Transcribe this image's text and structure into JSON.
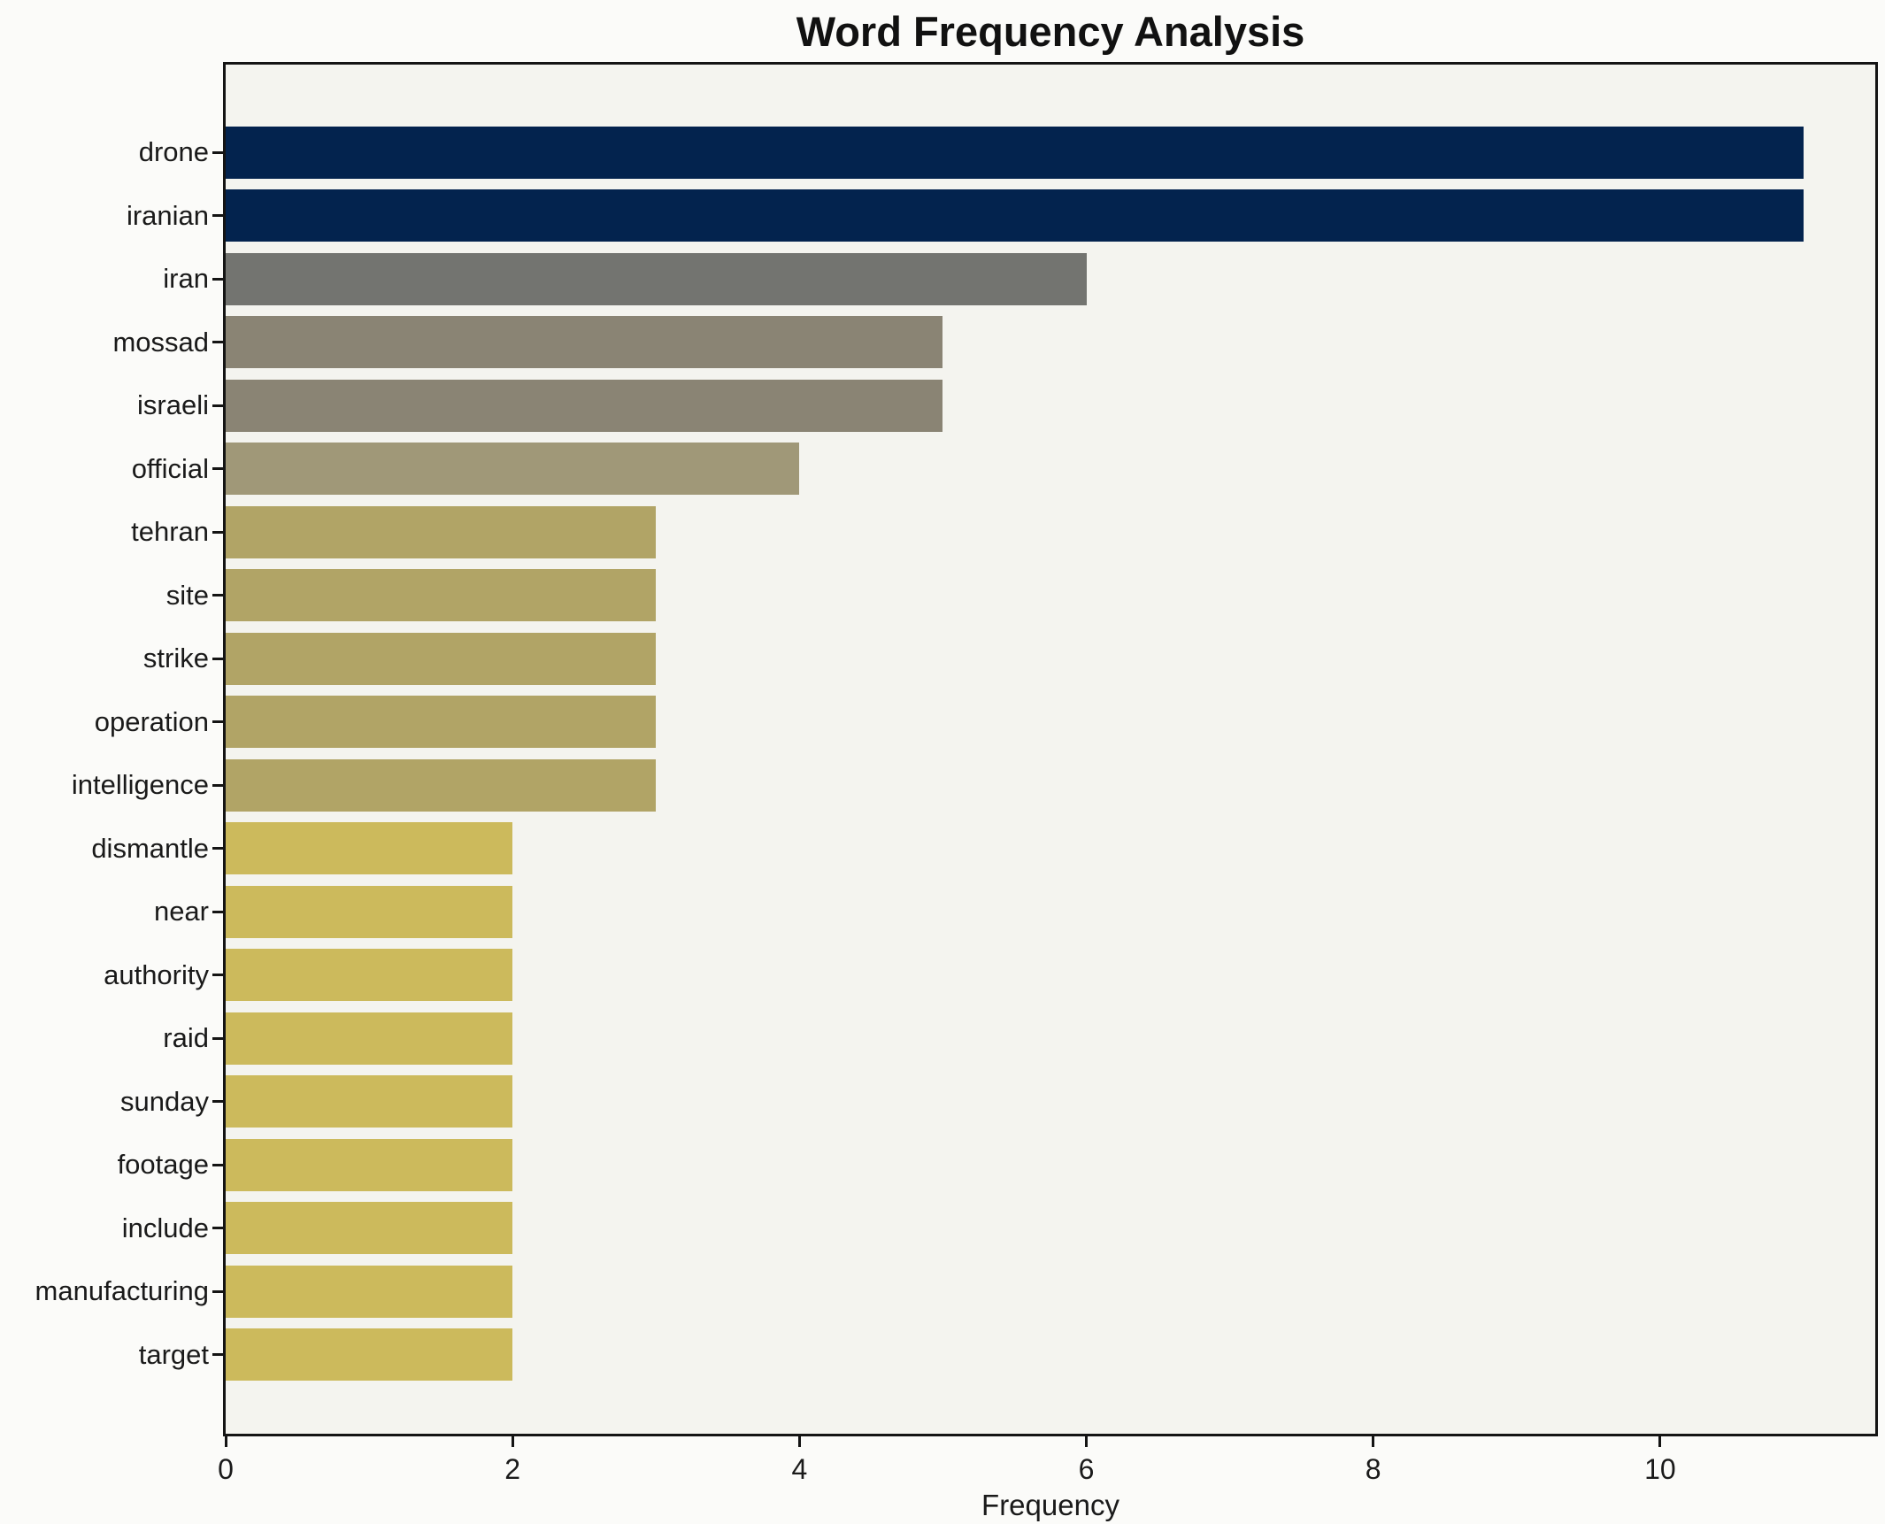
{
  "title": "Word Frequency Analysis",
  "xlabel": "Frequency",
  "colors": {
    "figure_bg": "#fbfbf9",
    "plot_bg": "#f4f4ef",
    "spine": "#141414",
    "text": "#1a1a1a"
  },
  "chart_data": {
    "type": "bar",
    "orientation": "horizontal",
    "title": "Word Frequency Analysis",
    "xlabel": "Frequency",
    "ylabel": "",
    "categories": [
      "drone",
      "iranian",
      "iran",
      "mossad",
      "israeli",
      "official",
      "tehran",
      "site",
      "strike",
      "operation",
      "intelligence",
      "dismantle",
      "near",
      "authority",
      "raid",
      "sunday",
      "footage",
      "include",
      "manufacturing",
      "target"
    ],
    "values": [
      11,
      11,
      6,
      5,
      5,
      4,
      3,
      3,
      3,
      3,
      3,
      2,
      2,
      2,
      2,
      2,
      2,
      2,
      2,
      2
    ],
    "xlim": [
      0,
      11.5
    ],
    "xticks": [
      0,
      2,
      4,
      6,
      8,
      10
    ],
    "grid": false,
    "legend": null,
    "colormap": "cividis",
    "bar_colors": [
      "#03234e",
      "#03234e",
      "#737470",
      "#8a8474",
      "#8a8474",
      "#a09878",
      "#b1a466",
      "#b1a466",
      "#b1a466",
      "#b1a466",
      "#b1a466",
      "#ccba5c",
      "#ccba5c",
      "#ccba5c",
      "#ccba5c",
      "#ccba5c",
      "#ccba5c",
      "#ccba5c",
      "#ccba5c",
      "#ccba5c"
    ]
  }
}
